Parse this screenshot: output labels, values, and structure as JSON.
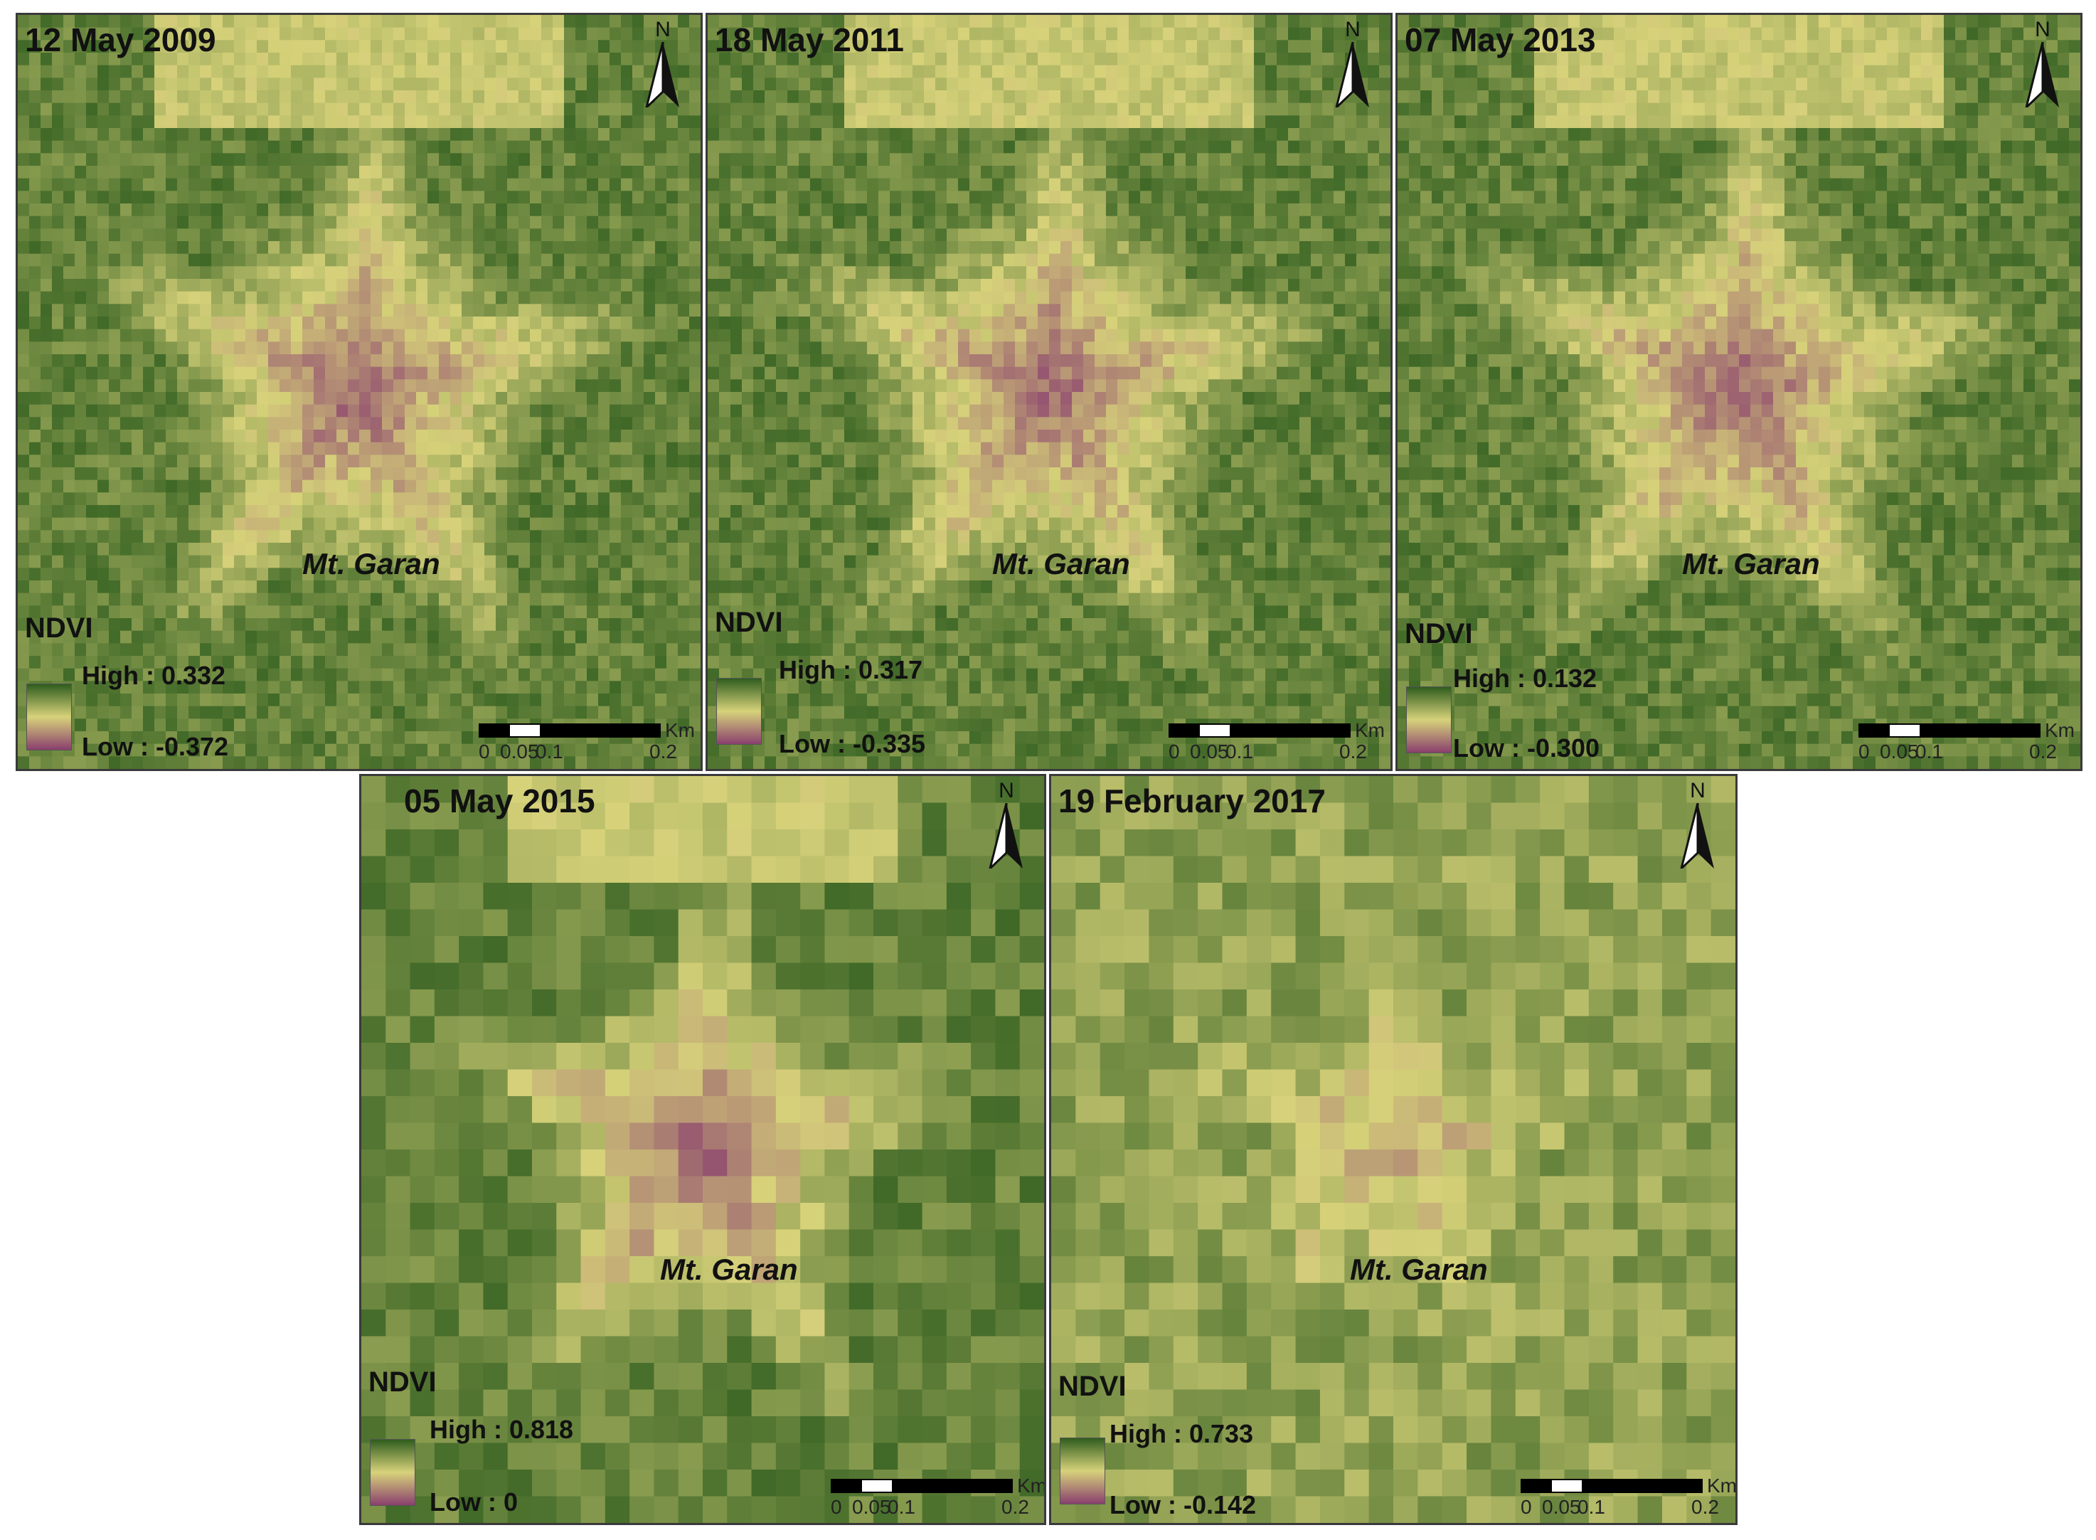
{
  "panels": [
    {
      "date": "12 May 2009",
      "place": "Mt. Garan",
      "legend": {
        "title": "NDVI",
        "high": "High : 0.332",
        "low": "Low : -0.372"
      }
    },
    {
      "date": "18 May 2011",
      "place": "Mt. Garan",
      "legend": {
        "title": "NDVI",
        "high": "High : 0.317",
        "low": "Low : -0.335"
      }
    },
    {
      "date": "07 May 2013",
      "place": "Mt. Garan",
      "legend": {
        "title": "NDVI",
        "high": "High : 0.132",
        "low": "Low : -0.300"
      }
    },
    {
      "date": "05 May 2015",
      "place": "Mt. Garan",
      "legend": {
        "title": "NDVI",
        "high": "High : 0.818",
        "low": "Low : 0"
      }
    },
    {
      "date": "19 February 2017",
      "place": "Mt. Garan",
      "legend": {
        "title": "NDVI",
        "high": "High : 0.733",
        "low": "Low : -0.142"
      }
    }
  ],
  "north_label": "N",
  "scale": {
    "unit": "Km",
    "ticks": [
      "0",
      "0.05",
      "0.1",
      "0.2"
    ]
  },
  "colors": {
    "high": "#2f5d1e",
    "mid": "#d7d27a",
    "low": "#8a3f6e"
  }
}
